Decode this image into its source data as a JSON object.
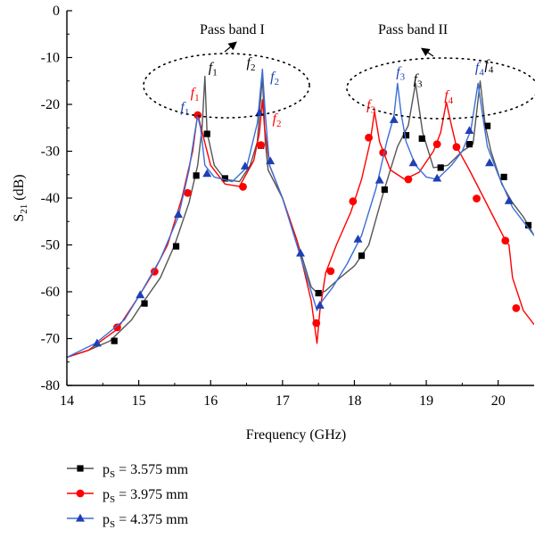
{
  "chart_data": {
    "type": "line",
    "xlabel": "Frequency (GHz)",
    "ylabel_main": "S",
    "ylabel_sub": "21",
    "ylabel_unit": "(dB)",
    "xlim": [
      14,
      20.5
    ],
    "ylim": [
      -80,
      0
    ],
    "xticks": [
      14,
      15,
      16,
      17,
      18,
      19,
      20
    ],
    "yticks": [
      0,
      -10,
      -20,
      -30,
      -40,
      -50,
      -60,
      -70,
      -80
    ],
    "grid": false,
    "legend_position": "bottom-left, below plot",
    "series": [
      {
        "name_main": "p",
        "name_sub": "S",
        "name_rest": " = 3.575 mm",
        "color": "#000000",
        "line_color": "#555555",
        "marker": "square",
        "x": [
          14,
          14.3,
          14.6,
          14.9,
          15.05,
          15.3,
          15.5,
          15.7,
          15.82,
          15.88,
          15.92,
          15.95,
          15.98,
          16.05,
          16.2,
          16.4,
          16.55,
          16.65,
          16.72,
          16.76,
          16.8,
          17.0,
          17.2,
          17.4,
          17.5,
          17.6,
          17.8,
          18.0,
          18.2,
          18.4,
          18.6,
          18.75,
          18.85,
          18.95,
          19.1,
          19.3,
          19.5,
          19.65,
          19.75,
          19.82,
          19.9,
          20.05,
          20.2,
          20.35,
          20.5
        ],
        "y": [
          -74,
          -72.5,
          -70.5,
          -66,
          -62.5,
          -57,
          -50,
          -41,
          -33,
          -25,
          -14,
          -26,
          -28,
          -33,
          -36,
          -36.5,
          -33,
          -28,
          -14,
          -28,
          -34,
          -40,
          -49,
          -59,
          -60.5,
          -59.8,
          -57,
          -54.5,
          -50,
          -39,
          -29,
          -24.5,
          -15.5,
          -26,
          -33.5,
          -33,
          -30,
          -28.5,
          -15,
          -24.5,
          -30,
          -37,
          -41,
          -44,
          -48
        ],
        "markers_x": [
          14.66,
          15.08,
          15.52,
          15.8,
          15.95,
          16.2,
          16.7,
          17.5,
          18.1,
          18.42,
          18.72,
          18.94,
          19.2,
          19.6,
          19.85,
          20.08,
          20.42
        ],
        "markers_y": [
          -70.5,
          -62.5,
          -50.3,
          -35.2,
          -26.3,
          -35.8,
          -28.8,
          -60.3,
          -52.3,
          -38.2,
          -26.6,
          -27.3,
          -33.5,
          -28.5,
          -24.6,
          -35.5,
          -45.8
        ]
      },
      {
        "name_main": "p",
        "name_sub": "S",
        "name_rest": " = 3.975 mm",
        "color": "#ff0000",
        "line_color": "#ff0000",
        "marker": "circle",
        "x": [
          14,
          14.3,
          14.7,
          15.0,
          15.2,
          15.4,
          15.6,
          15.75,
          15.82,
          15.9,
          16.0,
          16.2,
          16.4,
          16.6,
          16.68,
          16.72,
          16.75,
          16.82,
          17.0,
          17.2,
          17.4,
          17.48,
          17.52,
          17.6,
          17.75,
          17.95,
          18.1,
          18.22,
          18.28,
          18.35,
          18.5,
          18.7,
          18.9,
          19.1,
          19.2,
          19.28,
          19.35,
          19.42,
          19.6,
          19.8,
          20.0,
          20.1,
          20.15,
          20.2,
          20.35,
          20.5
        ],
        "y": [
          -74,
          -72.5,
          -68,
          -61,
          -56,
          -50,
          -40,
          -30,
          -22,
          -27,
          -33,
          -37,
          -37.5,
          -32,
          -26,
          -19,
          -25,
          -33,
          -40,
          -49,
          -62,
          -71,
          -64,
          -56,
          -50,
          -43,
          -36,
          -28,
          -21.5,
          -28,
          -34,
          -36,
          -34.5,
          -30,
          -26,
          -19.5,
          -24.5,
          -29,
          -34,
          -40,
          -46,
          -49,
          -50,
          -57,
          -64,
          -67
        ],
        "markers_x": [
          14.7,
          15.22,
          15.68,
          15.82,
          16.7,
          16.45,
          17.47,
          17.67,
          17.98,
          18.2,
          18.4,
          18.75,
          19.15,
          19.42,
          19.7,
          20.1,
          20.25
        ],
        "markers_y": [
          -67.6,
          -55.7,
          -38.9,
          -22.3,
          -28.7,
          -37.6,
          -66.7,
          -55.6,
          -40.7,
          -27.1,
          -30.3,
          -36,
          -28.5,
          -29.1,
          -40.1,
          -49.1,
          -63.5
        ]
      },
      {
        "name_main": "p",
        "name_sub": "S",
        "name_rest": " = 4.375 mm",
        "color": "#1f3fb4",
        "line_color": "#3a6fd8",
        "marker": "triangle",
        "x": [
          14,
          14.4,
          14.8,
          15.0,
          15.3,
          15.55,
          15.7,
          15.78,
          15.82,
          15.86,
          15.92,
          16.05,
          16.3,
          16.5,
          16.65,
          16.72,
          16.76,
          16.82,
          17.0,
          17.2,
          17.4,
          17.48,
          17.55,
          17.7,
          17.9,
          18.1,
          18.3,
          18.45,
          18.55,
          18.6,
          18.65,
          18.72,
          18.85,
          19.0,
          19.15,
          19.35,
          19.5,
          19.62,
          19.72,
          19.78,
          19.85,
          20.0,
          20.2,
          20.5
        ],
        "y": [
          -74,
          -71,
          -66,
          -61,
          -53,
          -44,
          -34,
          -26,
          -22.5,
          -25,
          -33,
          -35.5,
          -36.5,
          -33.5,
          -24,
          -12.5,
          -22,
          -33,
          -40,
          -50,
          -60,
          -64,
          -62,
          -59,
          -54,
          -48,
          -38,
          -28,
          -22.5,
          -15.5,
          -22,
          -28,
          -33,
          -35.5,
          -36,
          -33,
          -30,
          -25.5,
          -15.5,
          -22,
          -29,
          -35,
          -42,
          -48
        ],
        "markers_x": [
          14.42,
          15.02,
          15.55,
          15.95,
          16.48,
          16.68,
          16.83,
          17.25,
          17.52,
          18.05,
          18.35,
          18.55,
          18.82,
          19.15,
          19.6,
          19.88,
          20.15
        ],
        "markers_y": [
          -71,
          -60.7,
          -43.5,
          -34.8,
          -33.2,
          -21.8,
          -32.1,
          -51.8,
          -62.9,
          -48.8,
          -36.2,
          -23.3,
          -32.5,
          -35.8,
          -25.6,
          -32.5,
          -40.6
        ]
      }
    ],
    "annotations": {
      "pass_band_1": "Pass band I",
      "pass_band_2": "Pass band II",
      "labels": [
        {
          "base": "f",
          "sub": "1",
          "color": "#000000",
          "x": 15.97,
          "y": -13
        },
        {
          "base": "f",
          "sub": "2",
          "color": "#000000",
          "x": 16.5,
          "y": -12
        },
        {
          "base": "f",
          "sub": "2",
          "color": "#1f3fb4",
          "x": 16.83,
          "y": -15
        },
        {
          "base": "f",
          "sub": "1",
          "color": "#ff0000",
          "x": 15.72,
          "y": -18.5
        },
        {
          "base": "f",
          "sub": "1",
          "color": "#1f3fb4",
          "x": 15.58,
          "y": -21.5
        },
        {
          "base": "f",
          "sub": "2",
          "color": "#ff0000",
          "x": 16.86,
          "y": -24
        },
        {
          "base": "f",
          "sub": "3",
          "color": "#1f3fb4",
          "x": 18.58,
          "y": -14
        },
        {
          "base": "f",
          "sub": "3",
          "color": "#000000",
          "x": 18.82,
          "y": -15.5
        },
        {
          "base": "f",
          "sub": "3",
          "color": "#ff0000",
          "x": 18.17,
          "y": -21
        },
        {
          "base": "f",
          "sub": "4",
          "color": "#ff0000",
          "x": 19.25,
          "y": -19
        },
        {
          "base": "f",
          "sub": "4",
          "color": "#1f3fb4",
          "x": 19.68,
          "y": -13
        },
        {
          "base": "f",
          "sub": "4",
          "color": "#000000",
          "x": 19.81,
          "y": -12.5
        }
      ]
    }
  }
}
